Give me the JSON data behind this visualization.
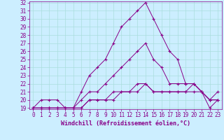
{
  "xlabel": "Windchill (Refroidissement éolien,°C)",
  "bg_color": "#cceeff",
  "grid_color": "#aadddd",
  "line_color": "#880088",
  "xlim": [
    -0.5,
    23.5
  ],
  "ylim": [
    18.85,
    32.15
  ],
  "xticks": [
    0,
    1,
    2,
    3,
    4,
    5,
    6,
    7,
    8,
    9,
    10,
    11,
    12,
    13,
    14,
    15,
    16,
    17,
    18,
    19,
    20,
    21,
    22,
    23
  ],
  "yticks": [
    19,
    20,
    21,
    22,
    23,
    24,
    25,
    26,
    27,
    28,
    29,
    30,
    31,
    32
  ],
  "curve1_x": [
    0,
    1,
    2,
    3,
    4,
    5,
    6,
    7,
    8,
    9,
    10,
    11,
    12,
    13,
    14,
    15,
    16,
    17,
    18,
    19,
    20,
    21,
    22,
    23
  ],
  "curve1_y": [
    19,
    20,
    20,
    20,
    19,
    19,
    21,
    23,
    24,
    25,
    27,
    29,
    30,
    31,
    32,
    30,
    28,
    26,
    25,
    22,
    22,
    21,
    19,
    20
  ],
  "curve2_x": [
    0,
    1,
    2,
    3,
    4,
    5,
    6,
    7,
    8,
    9,
    10,
    11,
    12,
    13,
    14,
    15,
    16,
    17,
    18,
    19,
    20,
    21,
    22,
    23
  ],
  "curve2_y": [
    19,
    19,
    19,
    19,
    19,
    19,
    20,
    21,
    21,
    22,
    23,
    24,
    25,
    26,
    27,
    25,
    24,
    22,
    22,
    22,
    22,
    21,
    20,
    21
  ],
  "curve3_x": [
    0,
    1,
    2,
    3,
    4,
    5,
    6,
    7,
    8,
    9,
    10,
    11,
    12,
    13,
    14,
    15,
    16,
    17,
    18,
    19,
    20,
    21,
    22,
    23
  ],
  "curve3_y": [
    19,
    19,
    19,
    19,
    19,
    19,
    19,
    20,
    20,
    20,
    21,
    21,
    21,
    22,
    22,
    21,
    21,
    21,
    21,
    21,
    21,
    21,
    20,
    20
  ],
  "curve4_x": [
    0,
    1,
    2,
    3,
    4,
    5,
    6,
    7,
    8,
    9,
    10,
    11,
    12,
    13,
    14,
    15,
    16,
    17,
    18,
    19,
    20,
    21,
    22,
    23
  ],
  "curve4_y": [
    19,
    19,
    19,
    19,
    19,
    19,
    19,
    20,
    20,
    20,
    20,
    21,
    21,
    21,
    22,
    21,
    21,
    21,
    21,
    21,
    22,
    21,
    20,
    20
  ],
  "tick_fontsize": 5.5,
  "xlabel_fontsize": 6.0
}
